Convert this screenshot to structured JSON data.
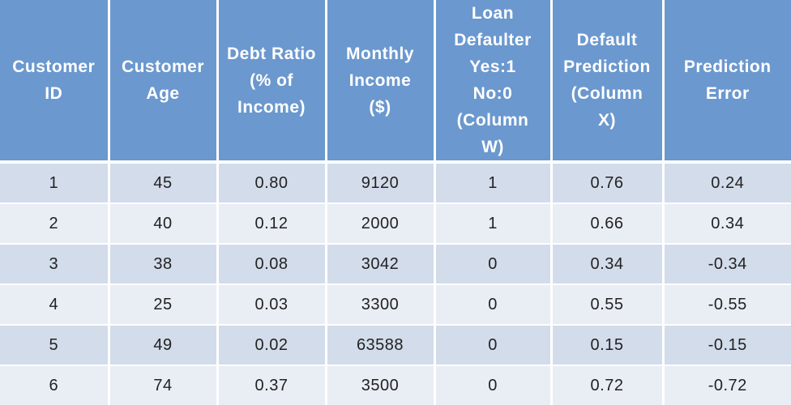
{
  "table": {
    "headers": [
      "Customer\nID",
      "Customer\nAge",
      "Debt Ratio\n(% of\nIncome)",
      "Monthly\nIncome\n($)",
      "Loan\nDefaulter\nYes:1\nNo:0\n(Column\nW)",
      "Default\nPrediction\n(Column\nX)",
      "Prediction\nError"
    ],
    "rows": [
      [
        "1",
        "45",
        "0.80",
        "9120",
        "1",
        "0.76",
        "0.24"
      ],
      [
        "2",
        "40",
        "0.12",
        "2000",
        "1",
        "0.66",
        "0.34"
      ],
      [
        "3",
        "38",
        "0.08",
        "3042",
        "0",
        "0.34",
        "-0.34"
      ],
      [
        "4",
        "25",
        "0.03",
        "3300",
        "0",
        "0.55",
        "-0.55"
      ],
      [
        "5",
        "49",
        "0.02",
        "63588",
        "0",
        "0.15",
        "-0.15"
      ],
      [
        "6",
        "74",
        "0.37",
        "3500",
        "0",
        "0.72",
        "-0.72"
      ]
    ],
    "colors": {
      "header_bg": "#6b98ce",
      "row_odd_bg": "#d3dcea",
      "row_even_bg": "#e9edf4"
    }
  }
}
